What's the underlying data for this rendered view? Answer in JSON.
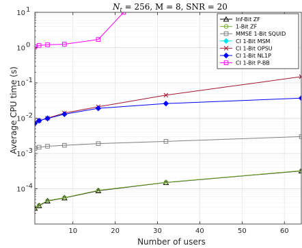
{
  "chart_data": {
    "type": "line",
    "title": "N_t = 256, M = 8, SNR = 20",
    "title_parts": {
      "n_sym": "N",
      "n_sub": "t",
      "rest": " = 256, M = 8, SNR = 20"
    },
    "xlabel": "Number of users",
    "ylabel": "Average CPU time (s)",
    "xlim": [
      1,
      64
    ],
    "ylim": [
      1e-05,
      10
    ],
    "y_scale": "log",
    "grid": true,
    "legend_position": "top-right",
    "x_ticks": [
      10,
      20,
      30,
      40,
      50,
      60
    ],
    "x_tick_labels": [
      "10",
      "20",
      "30",
      "40",
      "50",
      "60"
    ],
    "y_ticks": [
      10,
      1,
      0.1,
      0.01,
      0.001,
      0.0001
    ],
    "y_tick_labels": [
      {
        "base": "10",
        "exp": "1"
      },
      {
        "base": "10",
        "exp": "0"
      },
      {
        "base": "10",
        "exp": "-1"
      },
      {
        "base": "10",
        "exp": "-2"
      },
      {
        "base": "10",
        "exp": "-3"
      },
      {
        "base": "10",
        "exp": "-4"
      }
    ],
    "series": [
      {
        "name": "Inf-Bit ZF",
        "color": "#000000",
        "marker": "triangle",
        "x": [
          1,
          2,
          4,
          8,
          16,
          32,
          64
        ],
        "y": [
          2.8e-05,
          3.3e-05,
          4.5e-05,
          5.5e-05,
          8.8e-05,
          0.00015,
          0.00032
        ]
      },
      {
        "name": "1-Bit ZF",
        "color": "#77ac30",
        "marker": "circle",
        "x": [
          1,
          2,
          4,
          8,
          16,
          32,
          64
        ],
        "y": [
          2.9e-05,
          3.4e-05,
          4.6e-05,
          5.6e-05,
          9e-05,
          0.000152,
          0.000325
        ]
      },
      {
        "name": "MMSE 1-Bit SQUID",
        "color": "#808080",
        "marker": "square",
        "x": [
          1,
          2,
          4,
          8,
          16,
          32,
          64
        ],
        "y": [
          0.0014,
          0.0015,
          0.0016,
          0.0017,
          0.0019,
          0.0022,
          0.003
        ]
      },
      {
        "name": "CI 1-Bit MSM",
        "color": "#00e5ee",
        "marker": "diamond",
        "x": [
          1,
          2,
          4,
          8
        ],
        "y": [
          0.0072,
          0.0085,
          0.01,
          0.013
        ]
      },
      {
        "name": "CI 1-Bit OPSU",
        "color": "#a2142f",
        "marker": "x",
        "x": [
          1,
          2,
          4,
          8,
          16,
          32,
          64
        ],
        "y": [
          0.0075,
          0.0085,
          0.01,
          0.014,
          0.021,
          0.045,
          0.15
        ]
      },
      {
        "name": "CI 1-Bit NL1P",
        "color": "#0000ff",
        "marker": "diamond",
        "x": [
          1,
          2,
          4,
          8,
          16,
          32,
          64
        ],
        "y": [
          0.0072,
          0.0085,
          0.0098,
          0.013,
          0.019,
          0.026,
          0.037
        ]
      },
      {
        "name": "CI 1-Bit P-BB",
        "color": "#ff00ff",
        "marker": "square",
        "x": [
          1,
          2,
          4,
          8,
          16,
          22
        ],
        "y": [
          1.05,
          1.15,
          1.2,
          1.25,
          1.7,
          10
        ]
      }
    ]
  }
}
